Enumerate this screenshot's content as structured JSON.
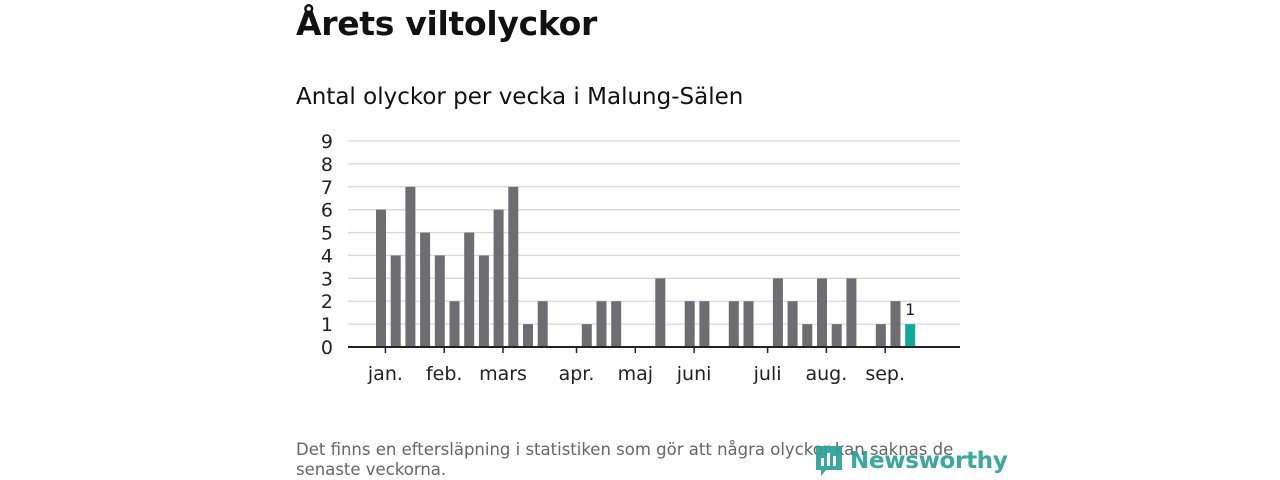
{
  "title": "Årets viltolyckor",
  "subtitle": "Antal olyckor per vecka i Malung-Sälen",
  "footnote": "Det finns en eftersläpning i statistiken som gör att några olyckor kan saknas de senaste veckorna.",
  "logo_text": "Newsworthy",
  "colors": {
    "bar": "#6e6d72",
    "highlight": "#13a89e",
    "grid": "#d9d9d9",
    "axis": "#222222"
  },
  "chart_data": {
    "type": "bar",
    "title": "Antal olyckor per vecka i Malung-Sälen",
    "xlabel": "",
    "ylabel": "",
    "ylim": [
      0,
      9
    ],
    "yticks": [
      0,
      1,
      2,
      3,
      4,
      5,
      6,
      7,
      8,
      9
    ],
    "week_range": [
      1,
      37
    ],
    "weeks": [
      2,
      3,
      4,
      5,
      6,
      7,
      8,
      9,
      10,
      11,
      12,
      13,
      14,
      15,
      16,
      17,
      18,
      19,
      20,
      21,
      22,
      23,
      24,
      25,
      26,
      27,
      28,
      29,
      30,
      31,
      32,
      33,
      34,
      35,
      36,
      37
    ],
    "values": [
      6,
      4,
      7,
      5,
      4,
      2,
      5,
      4,
      6,
      7,
      1,
      2,
      0,
      0,
      1,
      2,
      2,
      0,
      0,
      3,
      0,
      2,
      2,
      0,
      2,
      2,
      0,
      3,
      2,
      1,
      3,
      1,
      3,
      0,
      1,
      2
    ],
    "highlight": {
      "week": 38,
      "value": 1,
      "label": "1"
    },
    "month_labels": [
      {
        "label": "jan.",
        "week": 2.3
      },
      {
        "label": "feb.",
        "week": 6.3
      },
      {
        "label": "mars",
        "week": 10.3
      },
      {
        "label": "apr.",
        "week": 15.3
      },
      {
        "label": "maj",
        "week": 19.3
      },
      {
        "label": "juni",
        "week": 23.3
      },
      {
        "label": "juli",
        "week": 28.3
      },
      {
        "label": "aug.",
        "week": 32.3
      },
      {
        "label": "sep.",
        "week": 36.3
      }
    ]
  }
}
